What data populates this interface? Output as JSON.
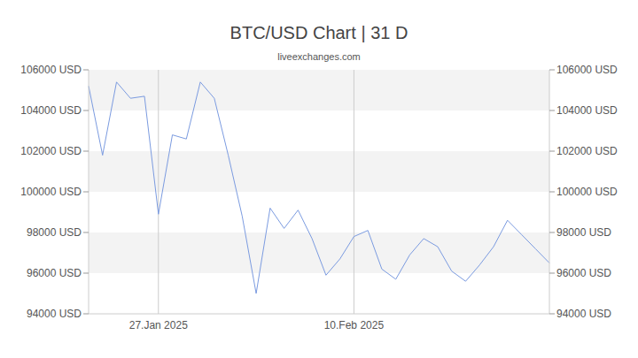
{
  "chart_data": {
    "type": "line",
    "title": "BTC/USD Chart | 31 D",
    "subtitle": "liveexchanges.com",
    "categories": [
      null,
      null,
      null,
      null,
      null,
      "27.Jan 2025",
      null,
      null,
      null,
      null,
      null,
      null,
      null,
      null,
      null,
      null,
      null,
      null,
      null,
      "10.Feb 2025",
      null,
      null,
      null,
      null,
      null,
      null,
      null,
      null,
      null,
      null,
      null,
      null,
      null,
      null
    ],
    "values": [
      105200,
      101800,
      105400,
      104600,
      104700,
      98900,
      102800,
      102600,
      105400,
      104600,
      101800,
      98800,
      95000,
      99200,
      98200,
      99100,
      97700,
      95900,
      96700,
      97800,
      98100,
      96200,
      95700,
      96900,
      97700,
      97300,
      96100,
      95600,
      96400,
      97300,
      98600,
      97900,
      97200,
      96500
    ],
    "color": "#7b9be0",
    "ylim": [
      94000,
      106000
    ],
    "yticks": [
      {
        "value": 94000,
        "label": "94000 USD"
      },
      {
        "value": 96000,
        "label": "96000 USD"
      },
      {
        "value": 98000,
        "label": "98000 USD"
      },
      {
        "value": 100000,
        "label": "100000 USD"
      },
      {
        "value": 102000,
        "label": "102000 USD"
      },
      {
        "value": 104000,
        "label": "104000 USD"
      },
      {
        "value": 106000,
        "label": "106000 USD"
      }
    ],
    "y2lim": [
      94000,
      106000
    ],
    "y2ticks": [
      {
        "value": 94000,
        "label": "94000 USD"
      },
      {
        "value": 96000,
        "label": "96000 USD"
      },
      {
        "value": 98000,
        "label": "98000 USD"
      },
      {
        "value": 100000,
        "label": "100000 USD"
      },
      {
        "value": 102000,
        "label": "102000 USD"
      },
      {
        "value": 104000,
        "label": "104000 USD"
      },
      {
        "value": 106000,
        "label": "106000 USD"
      }
    ],
    "grid": true
  }
}
